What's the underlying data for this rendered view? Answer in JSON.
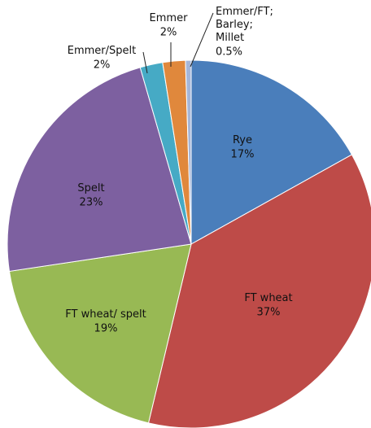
{
  "chart_data": {
    "type": "pie",
    "categories": [
      "Rye",
      "FT wheat",
      "FT wheat/ spelt",
      "Spelt",
      "Emmer/Spelt",
      "Emmer",
      "Emmer/FT;\nBarley;\nMillet"
    ],
    "values": [
      17,
      37,
      19,
      23,
      2,
      2,
      0.5
    ],
    "value_labels": [
      "17%",
      "37%",
      "19%",
      "23%",
      "2%",
      "2%",
      "0.5%"
    ],
    "colors": [
      "#4a7ebb",
      "#be4b48",
      "#98b954",
      "#7d60a0",
      "#46aac5",
      "#e0883c",
      "#a5b6d8"
    ]
  }
}
